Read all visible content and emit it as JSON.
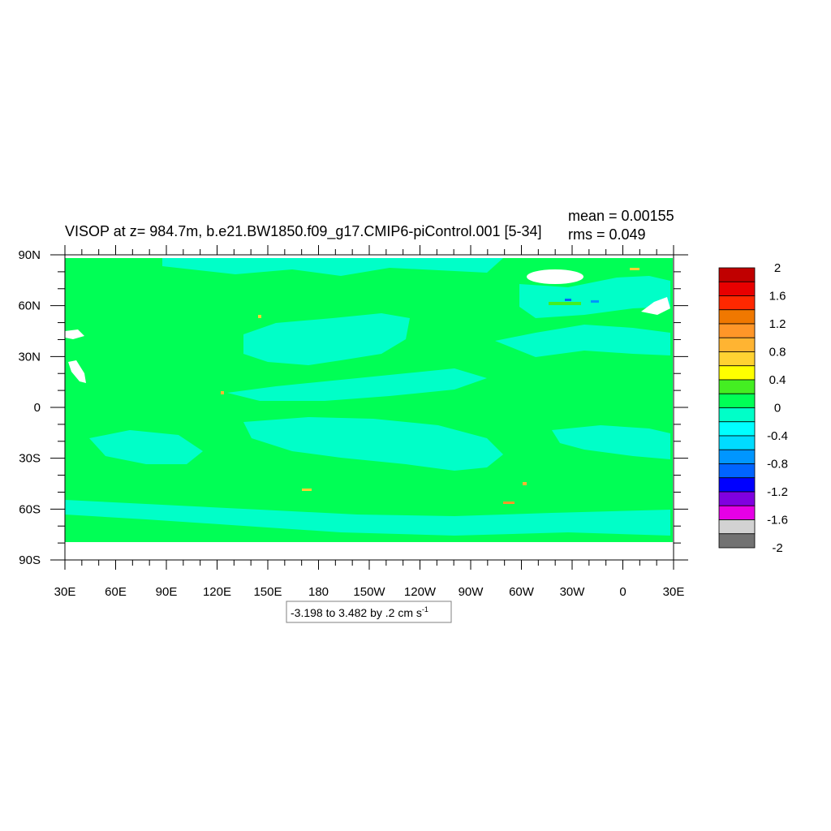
{
  "title": "VISOP at z= 984.7m, b.e21.BW1850.f09_g17.CMIP6-piControl.001 [5-34]",
  "stats": {
    "mean": "mean = 0.00155",
    "rms": "rms = 0.049"
  },
  "range_note": "-3.198 to 3.482 by .2 cm s",
  "range_note_exp": "-1",
  "chart_data": {
    "type": "heatmap",
    "title": "VISOP at z= 984.7m, b.e21.BW1850.f09_g17.CMIP6-piControl.001 [5-34]",
    "x_ticks": [
      "30E",
      "60E",
      "90E",
      "120E",
      "150E",
      "180",
      "150W",
      "120W",
      "90W",
      "60W",
      "30W",
      "0",
      "30E"
    ],
    "y_ticks": [
      "90N",
      "60N",
      "30N",
      "0",
      "30S",
      "60S",
      "90S"
    ],
    "y_values": [
      90,
      60,
      30,
      0,
      -30,
      -60,
      -90
    ],
    "xlim": [
      30,
      390
    ],
    "ylim": [
      -90,
      90
    ],
    "units": "cm s-1",
    "data_range": [
      -3.198,
      3.482
    ],
    "interval": 0.2,
    "mean": 0.00155,
    "rms": 0.049,
    "dominant_value_range": [
      0,
      0.2
    ],
    "secondary_value_range": [
      -0.2,
      0
    ],
    "colorbar": {
      "labels": [
        "2",
        "1.6",
        "1.2",
        "0.8",
        "0.4",
        "0",
        "-0.4",
        "-0.8",
        "-1.2",
        "-1.6",
        "-2"
      ],
      "colors": [
        "#c00000",
        "#e80000",
        "#ff2800",
        "#f07800",
        "#ff9628",
        "#ffb432",
        "#ffd232",
        "#ffff00",
        "#44ee22",
        "#00ff55",
        "#00ffc8",
        "#00ffff",
        "#00dcff",
        "#0096ff",
        "#0064ff",
        "#0000ff",
        "#8000e0",
        "#e600e6",
        "#d2d2d2",
        "#727272"
      ]
    }
  }
}
